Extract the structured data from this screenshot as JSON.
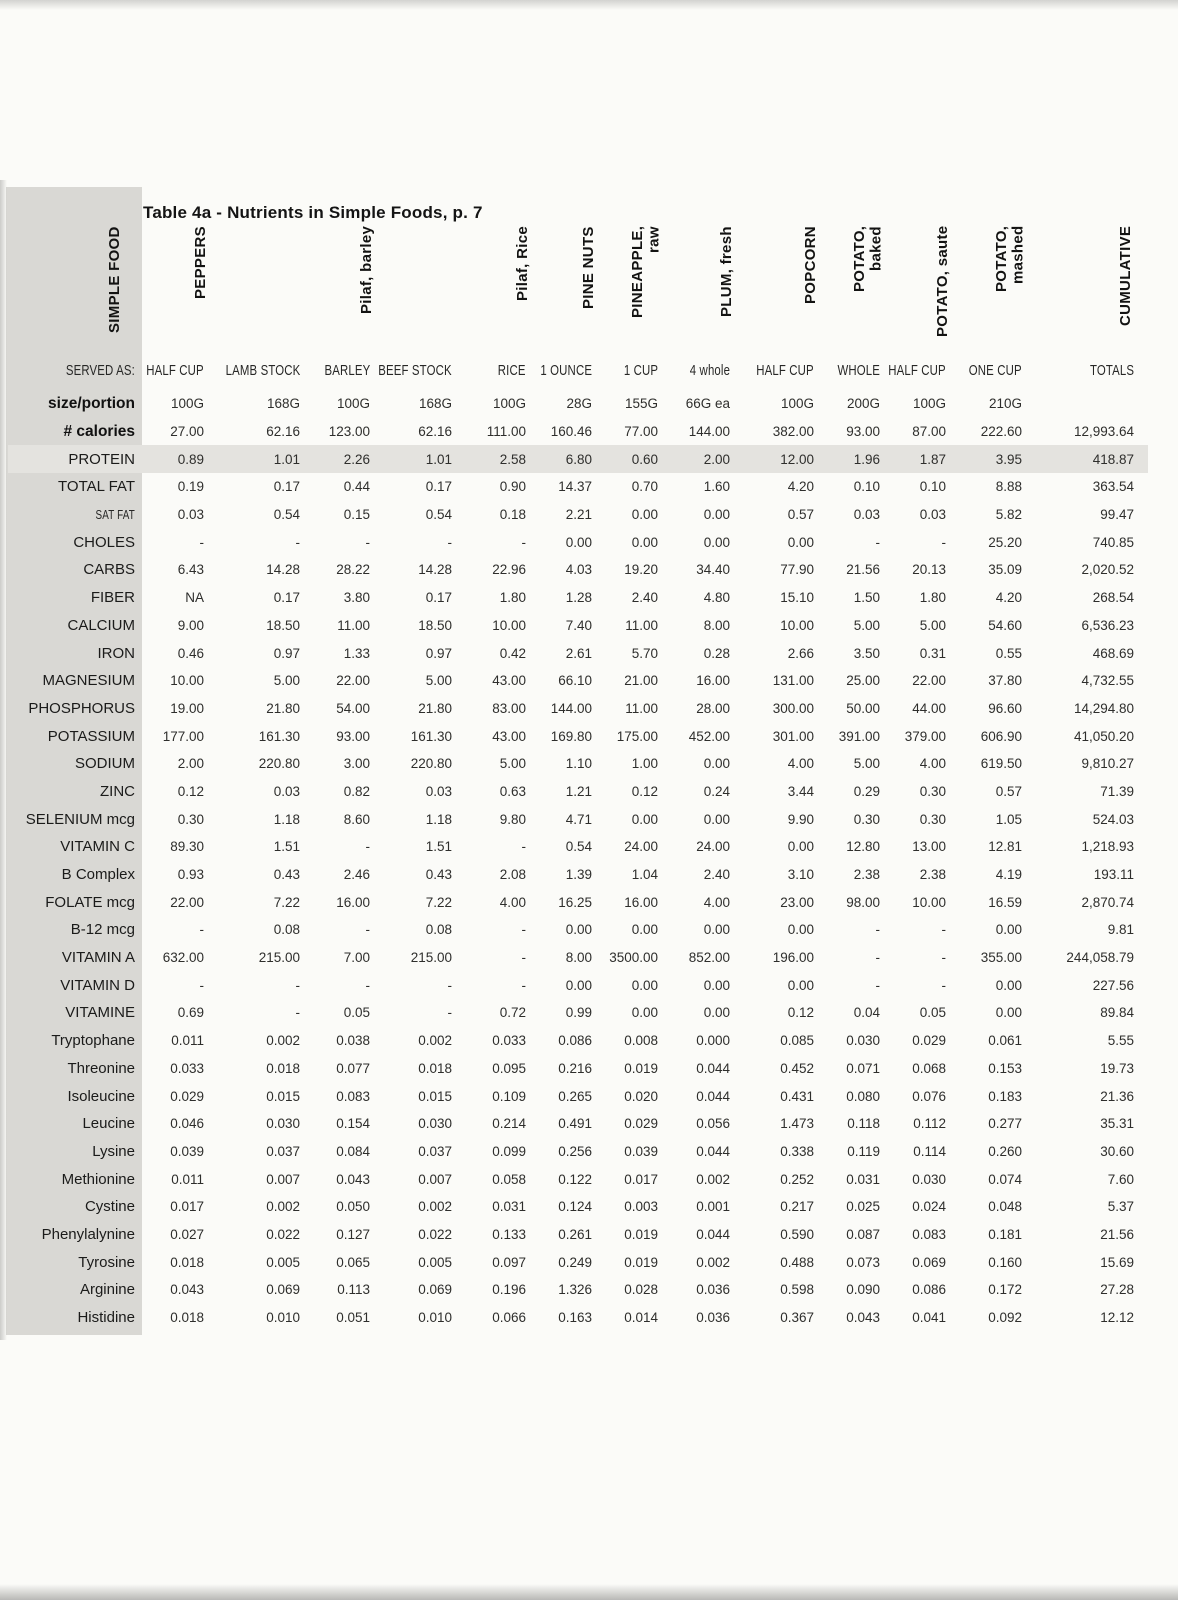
{
  "page": {
    "title": "Table 4a - Nutrients in Simple Foods, p. 7"
  },
  "table": {
    "corner_label": "SIMPLE FOOD",
    "served_as_label": "SERVED AS:",
    "columns": [
      {
        "food": "PEPPERS",
        "served_as": "HALF CUP"
      },
      {
        "food": "",
        "served_as": "LAMB STOCK"
      },
      {
        "food": "Pilaf, barley",
        "served_as": "BARLEY"
      },
      {
        "food": "",
        "served_as": "BEEF STOCK"
      },
      {
        "food": "Pilaf, Rice",
        "served_as": "RICE"
      },
      {
        "food": "PINE NUTS",
        "served_as": "1 OUNCE"
      },
      {
        "food": "PINEAPPLE,\nraw",
        "served_as": "1 CUP"
      },
      {
        "food": "PLUM, fresh",
        "served_as": "4 whole"
      },
      {
        "food": "POPCORN",
        "served_as": "HALF CUP"
      },
      {
        "food": "POTATO,\nbaked",
        "served_as": "WHOLE"
      },
      {
        "food": "POTATO, saute",
        "served_as": "HALF CUP"
      },
      {
        "food": "POTATO,\nmashed",
        "served_as": "ONE CUP"
      },
      {
        "food": "CUMULATIVE",
        "served_as": "TOTALS"
      }
    ],
    "rows": [
      {
        "label": "size/portion",
        "bold": true,
        "values": [
          "100G",
          "168G",
          "100G",
          "168G",
          "100G",
          "28G",
          "155G",
          "66G ea",
          "100G",
          "200G",
          "100G",
          "210G",
          ""
        ]
      },
      {
        "label": "# calories",
        "bold": true,
        "values": [
          "27.00",
          "62.16",
          "123.00",
          "62.16",
          "111.00",
          "160.46",
          "77.00",
          "144.00",
          "382.00",
          "93.00",
          "87.00",
          "222.60",
          "12,993.64"
        ]
      },
      {
        "label": "PROTEIN",
        "highlight": true,
        "values": [
          "0.89",
          "1.01",
          "2.26",
          "1.01",
          "2.58",
          "6.80",
          "0.60",
          "2.00",
          "12.00",
          "1.96",
          "1.87",
          "3.95",
          "418.87"
        ]
      },
      {
        "label": "TOTAL FAT",
        "values": [
          "0.19",
          "0.17",
          "0.44",
          "0.17",
          "0.90",
          "14.37",
          "0.70",
          "1.60",
          "4.20",
          "0.10",
          "0.10",
          "8.88",
          "363.54"
        ]
      },
      {
        "label": "SAT FAT",
        "condensed": true,
        "values": [
          "0.03",
          "0.54",
          "0.15",
          "0.54",
          "0.18",
          "2.21",
          "0.00",
          "0.00",
          "0.57",
          "0.03",
          "0.03",
          "5.82",
          "99.47"
        ]
      },
      {
        "label": "CHOLES",
        "values": [
          "-",
          "-",
          "-",
          "-",
          "-",
          "0.00",
          "0.00",
          "0.00",
          "0.00",
          "-",
          "-",
          "25.20",
          "740.85"
        ]
      },
      {
        "label": "CARBS",
        "values": [
          "6.43",
          "14.28",
          "28.22",
          "14.28",
          "22.96",
          "4.03",
          "19.20",
          "34.40",
          "77.90",
          "21.56",
          "20.13",
          "35.09",
          "2,020.52"
        ]
      },
      {
        "label": "FIBER",
        "values": [
          "NA",
          "0.17",
          "3.80",
          "0.17",
          "1.80",
          "1.28",
          "2.40",
          "4.80",
          "15.10",
          "1.50",
          "1.80",
          "4.20",
          "268.54"
        ]
      },
      {
        "label": "CALCIUM",
        "values": [
          "9.00",
          "18.50",
          "11.00",
          "18.50",
          "10.00",
          "7.40",
          "11.00",
          "8.00",
          "10.00",
          "5.00",
          "5.00",
          "54.60",
          "6,536.23"
        ]
      },
      {
        "label": "IRON",
        "values": [
          "0.46",
          "0.97",
          "1.33",
          "0.97",
          "0.42",
          "2.61",
          "5.70",
          "0.28",
          "2.66",
          "3.50",
          "0.31",
          "0.55",
          "468.69"
        ]
      },
      {
        "label": "MAGNESIUM",
        "values": [
          "10.00",
          "5.00",
          "22.00",
          "5.00",
          "43.00",
          "66.10",
          "21.00",
          "16.00",
          "131.00",
          "25.00",
          "22.00",
          "37.80",
          "4,732.55"
        ]
      },
      {
        "label": "PHOSPHORUS",
        "values": [
          "19.00",
          "21.80",
          "54.00",
          "21.80",
          "83.00",
          "144.00",
          "11.00",
          "28.00",
          "300.00",
          "50.00",
          "44.00",
          "96.60",
          "14,294.80"
        ]
      },
      {
        "label": "POTASSIUM",
        "values": [
          "177.00",
          "161.30",
          "93.00",
          "161.30",
          "43.00",
          "169.80",
          "175.00",
          "452.00",
          "301.00",
          "391.00",
          "379.00",
          "606.90",
          "41,050.20"
        ]
      },
      {
        "label": "SODIUM",
        "values": [
          "2.00",
          "220.80",
          "3.00",
          "220.80",
          "5.00",
          "1.10",
          "1.00",
          "0.00",
          "4.00",
          "5.00",
          "4.00",
          "619.50",
          "9,810.27"
        ]
      },
      {
        "label": "ZINC",
        "values": [
          "0.12",
          "0.03",
          "0.82",
          "0.03",
          "0.63",
          "1.21",
          "0.12",
          "0.24",
          "3.44",
          "0.29",
          "0.30",
          "0.57",
          "71.39"
        ]
      },
      {
        "label": "SELENIUM mcg",
        "values": [
          "0.30",
          "1.18",
          "8.60",
          "1.18",
          "9.80",
          "4.71",
          "0.00",
          "0.00",
          "9.90",
          "0.30",
          "0.30",
          "1.05",
          "524.03"
        ]
      },
      {
        "label": "VITAMIN C",
        "values": [
          "89.30",
          "1.51",
          "-",
          "1.51",
          "-",
          "0.54",
          "24.00",
          "24.00",
          "0.00",
          "12.80",
          "13.00",
          "12.81",
          "1,218.93"
        ]
      },
      {
        "label": "B Complex",
        "values": [
          "0.93",
          "0.43",
          "2.46",
          "0.43",
          "2.08",
          "1.39",
          "1.04",
          "2.40",
          "3.10",
          "2.38",
          "2.38",
          "4.19",
          "193.11"
        ]
      },
      {
        "label": "FOLATE mcg",
        "values": [
          "22.00",
          "7.22",
          "16.00",
          "7.22",
          "4.00",
          "16.25",
          "16.00",
          "4.00",
          "23.00",
          "98.00",
          "10.00",
          "16.59",
          "2,870.74"
        ]
      },
      {
        "label": "B-12 mcg",
        "values": [
          "-",
          "0.08",
          "-",
          "0.08",
          "-",
          "0.00",
          "0.00",
          "0.00",
          "0.00",
          "-",
          "-",
          "0.00",
          "9.81"
        ]
      },
      {
        "label": "VITAMIN A",
        "values": [
          "632.00",
          "215.00",
          "7.00",
          "215.00",
          "-",
          "8.00",
          "3500.00",
          "852.00",
          "196.00",
          "-",
          "-",
          "355.00",
          "244,058.79"
        ]
      },
      {
        "label": "VITAMIN D",
        "values": [
          "-",
          "-",
          "-",
          "-",
          "-",
          "0.00",
          "0.00",
          "0.00",
          "0.00",
          "-",
          "-",
          "0.00",
          "227.56"
        ]
      },
      {
        "label": "VITAMINE",
        "values": [
          "0.69",
          "-",
          "0.05",
          "-",
          "0.72",
          "0.99",
          "0.00",
          "0.00",
          "0.12",
          "0.04",
          "0.05",
          "0.00",
          "89.84"
        ]
      },
      {
        "label": "Tryptophane",
        "values": [
          "0.011",
          "0.002",
          "0.038",
          "0.002",
          "0.033",
          "0.086",
          "0.008",
          "0.000",
          "0.085",
          "0.030",
          "0.029",
          "0.061",
          "5.55"
        ]
      },
      {
        "label": "Threonine",
        "values": [
          "0.033",
          "0.018",
          "0.077",
          "0.018",
          "0.095",
          "0.216",
          "0.019",
          "0.044",
          "0.452",
          "0.071",
          "0.068",
          "0.153",
          "19.73"
        ]
      },
      {
        "label": "Isoleucine",
        "values": [
          "0.029",
          "0.015",
          "0.083",
          "0.015",
          "0.109",
          "0.265",
          "0.020",
          "0.044",
          "0.431",
          "0.080",
          "0.076",
          "0.183",
          "21.36"
        ]
      },
      {
        "label": "Leucine",
        "values": [
          "0.046",
          "0.030",
          "0.154",
          "0.030",
          "0.214",
          "0.491",
          "0.029",
          "0.056",
          "1.473",
          "0.118",
          "0.112",
          "0.277",
          "35.31"
        ]
      },
      {
        "label": "Lysine",
        "values": [
          "0.039",
          "0.037",
          "0.084",
          "0.037",
          "0.099",
          "0.256",
          "0.039",
          "0.044",
          "0.338",
          "0.119",
          "0.114",
          "0.260",
          "30.60"
        ]
      },
      {
        "label": "Methionine",
        "values": [
          "0.011",
          "0.007",
          "0.043",
          "0.007",
          "0.058",
          "0.122",
          "0.017",
          "0.002",
          "0.252",
          "0.031",
          "0.030",
          "0.074",
          "7.60"
        ]
      },
      {
        "label": "Cystine",
        "values": [
          "0.017",
          "0.002",
          "0.050",
          "0.002",
          "0.031",
          "0.124",
          "0.003",
          "0.001",
          "0.217",
          "0.025",
          "0.024",
          "0.048",
          "5.37"
        ]
      },
      {
        "label": "Phenylalynine",
        "values": [
          "0.027",
          "0.022",
          "0.127",
          "0.022",
          "0.133",
          "0.261",
          "0.019",
          "0.044",
          "0.590",
          "0.087",
          "0.083",
          "0.181",
          "21.56"
        ]
      },
      {
        "label": "Tyrosine",
        "values": [
          "0.018",
          "0.005",
          "0.065",
          "0.005",
          "0.097",
          "0.249",
          "0.019",
          "0.002",
          "0.488",
          "0.073",
          "0.069",
          "0.160",
          "15.69"
        ]
      },
      {
        "label": "Arginine",
        "values": [
          "0.043",
          "0.069",
          "0.113",
          "0.069",
          "0.196",
          "1.326",
          "0.028",
          "0.036",
          "0.598",
          "0.090",
          "0.086",
          "0.172",
          "27.28"
        ]
      },
      {
        "label": "Histidine",
        "values": [
          "0.018",
          "0.010",
          "0.051",
          "0.010",
          "0.066",
          "0.163",
          "0.014",
          "0.036",
          "0.367",
          "0.043",
          "0.041",
          "0.092",
          "12.12"
        ]
      }
    ]
  }
}
